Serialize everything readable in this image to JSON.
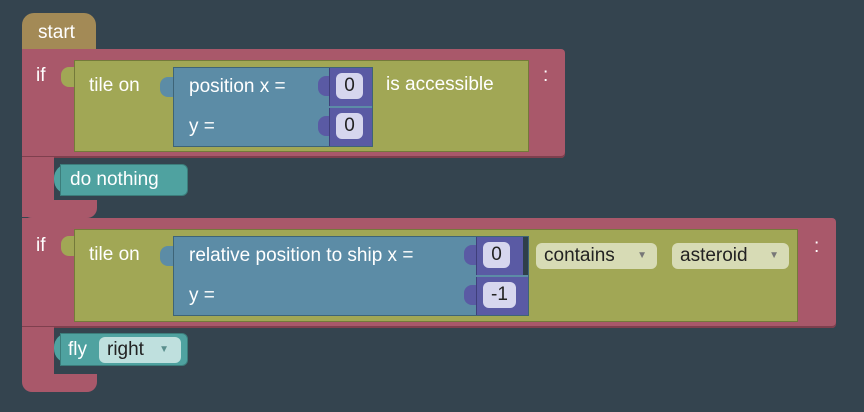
{
  "start_label": "start",
  "block1": {
    "if_label": "if",
    "tile_on_label": "tile on",
    "position_x_label": "position x =",
    "x_value": "0",
    "y_label": "y =",
    "y_value": "0",
    "is_accessible_label": "is accessible",
    "colon": ":",
    "action_label": "do nothing"
  },
  "block2": {
    "if_label": "if",
    "tile_on_label": "tile on",
    "rel_position_label": "relative position to ship x =",
    "x_value": "0",
    "y_label": "y =",
    "y_value": "-1",
    "contains_option": "contains",
    "object_option": "asteroid",
    "colon": ":",
    "action_label": "fly",
    "direction_option": "right"
  },
  "dropdown_arrow": "▼",
  "colors": {
    "background": "#34444f",
    "start_block": "#a38a56",
    "if_block": "#a9586a",
    "condition_block": "#a1a755",
    "position_block": "#5c8ca6",
    "number_block": "#5a5aa4",
    "action_block": "#4fa2a0"
  }
}
